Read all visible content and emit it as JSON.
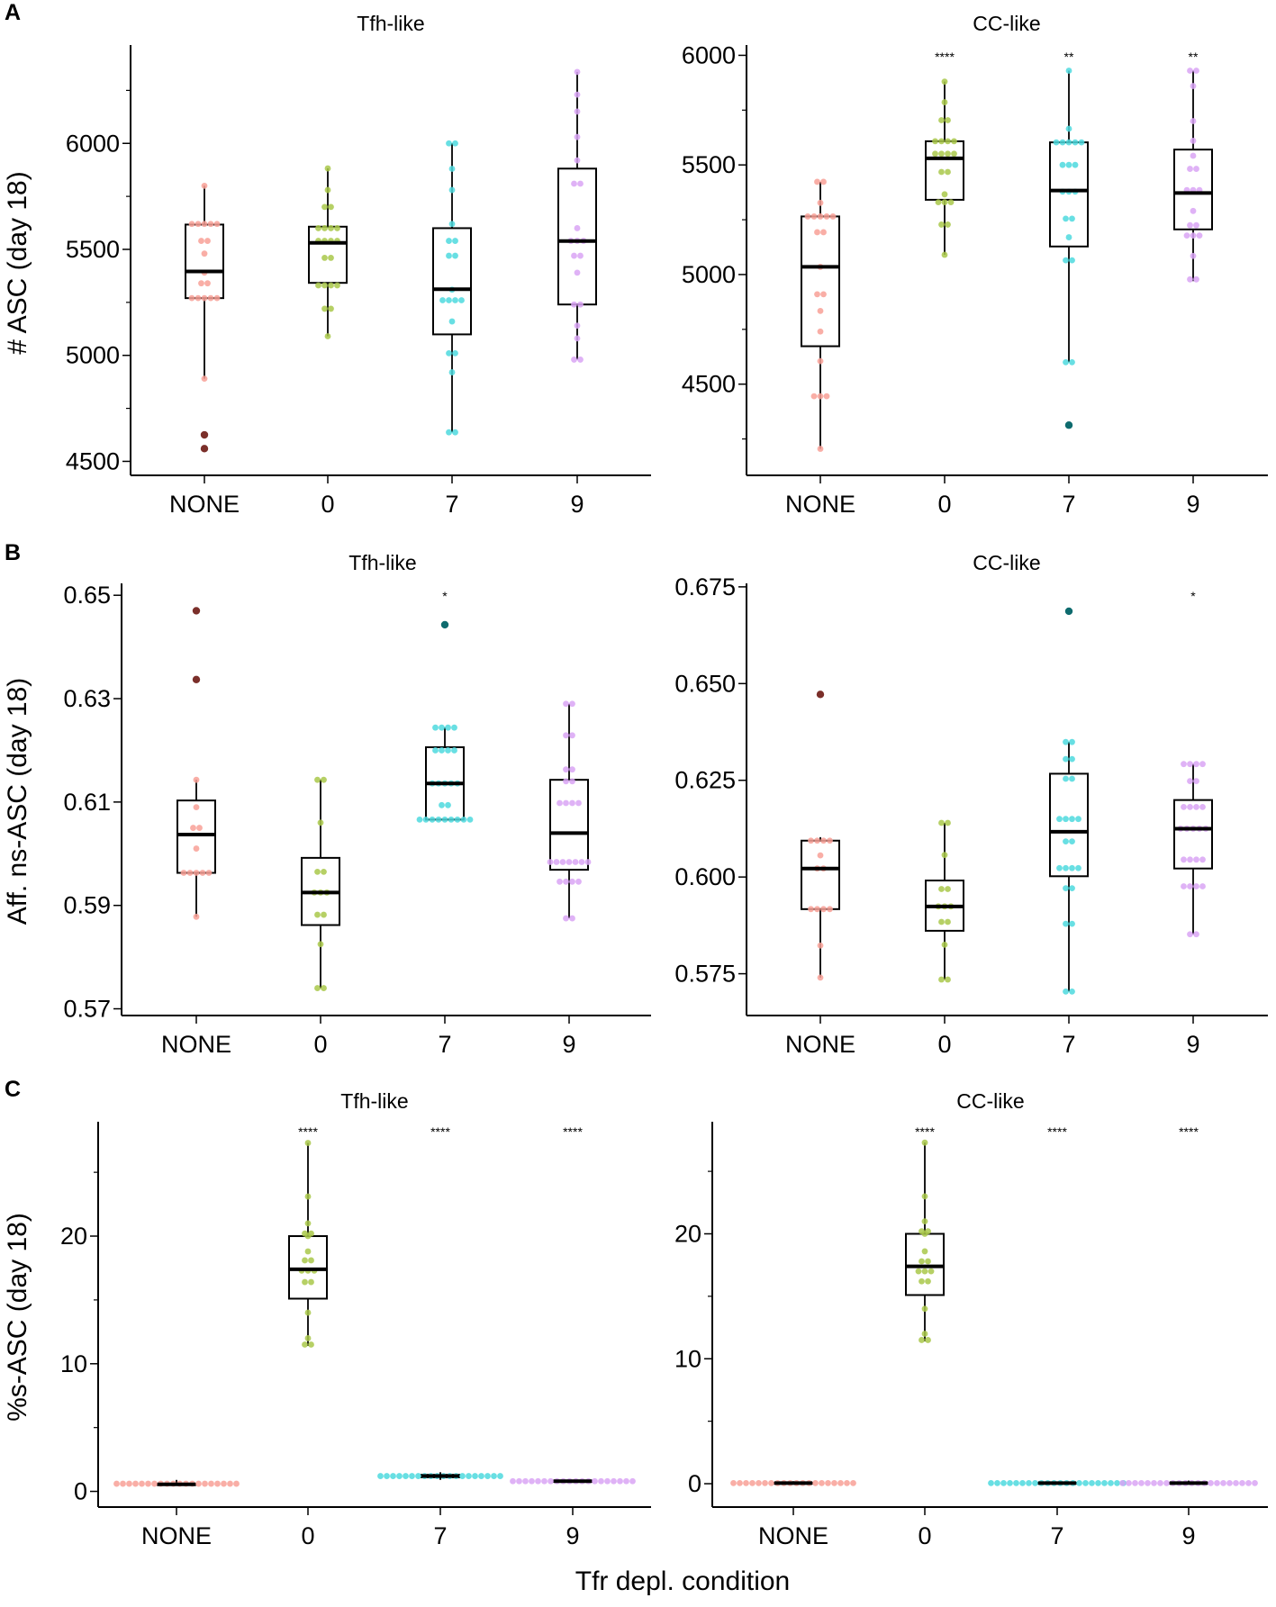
{
  "figure": {
    "panel_letters": [
      "A",
      "B",
      "C"
    ],
    "xlabel": "Tfr depl. condition",
    "colors": {
      "NONE": "#f8a097",
      "0": "#a9c84a",
      "7": "#4dd9de",
      "9": "#d9a4f5",
      "NONE_dark": "#7b2f2a",
      "0_dark": "#5d7d16",
      "7_dark": "#0e6b6e",
      "9_dark": "#7c3fa0"
    }
  },
  "chart_data": [
    {
      "type": "box",
      "panel": "A",
      "title": "Tfh-like",
      "ylabel": "# ASC (day 18)",
      "categories": [
        "NONE",
        "0",
        "7",
        "9"
      ],
      "ylim": [
        4434,
        6464
      ],
      "yticks": [
        4500,
        5000,
        5500,
        6000
      ],
      "ytick_labels": [
        "4500",
        "5000",
        "5500",
        "6000"
      ],
      "yminor": [
        4750,
        5250,
        5750,
        6250
      ],
      "groups": [
        {
          "name": "NONE",
          "box": {
            "whisker_low": 4890,
            "q1": 5270,
            "median": 5396,
            "q3": 5617,
            "whisker_high": 5800
          },
          "points": [
            5800,
            5620,
            5620,
            5620,
            5620,
            5620,
            5540,
            5540,
            5480,
            5390,
            5340,
            5340,
            5270,
            5270,
            5270,
            5270,
            5270,
            4890
          ],
          "outliers": [
            4625,
            4560
          ],
          "significance": ""
        },
        {
          "name": "0",
          "box": {
            "whisker_low": 5090,
            "q1": 5342,
            "median": 5531,
            "q3": 5607,
            "whisker_high": 5882
          },
          "points": [
            5882,
            5780,
            5700,
            5700,
            5600,
            5600,
            5600,
            5600,
            5540,
            5540,
            5540,
            5540,
            5460,
            5460,
            5330,
            5330,
            5330,
            5330,
            5220,
            5220,
            5090
          ],
          "outliers": [],
          "significance": ""
        },
        {
          "name": "7",
          "box": {
            "whisker_low": 4637,
            "q1": 5099,
            "median": 5312,
            "q3": 5600,
            "whisker_high": 6000
          },
          "points": [
            6000,
            6000,
            5880,
            5780,
            5620,
            5540,
            5540,
            5470,
            5470,
            5310,
            5260,
            5260,
            5260,
            5260,
            5160,
            5010,
            5010,
            4920,
            4637,
            4637
          ],
          "outliers": [],
          "significance": ""
        },
        {
          "name": "9",
          "box": {
            "whisker_low": 4980,
            "q1": 5240,
            "median": 5539,
            "q3": 5881,
            "whisker_high": 6337
          },
          "points": [
            6337,
            6230,
            6150,
            6030,
            5920,
            5810,
            5810,
            5600,
            5540,
            5540,
            5540,
            5470,
            5470,
            5390,
            5240,
            5240,
            5140,
            5080,
            4980,
            4980
          ],
          "outliers": [],
          "significance": ""
        }
      ]
    },
    {
      "type": "box",
      "panel": "A",
      "title": "CC-like",
      "ylabel": "",
      "categories": [
        "NONE",
        "0",
        "7",
        "9"
      ],
      "ylim": [
        4084,
        6047
      ],
      "yticks": [
        4500,
        5000,
        5500,
        6000
      ],
      "ytick_labels": [
        "4500",
        "5000",
        "5500",
        "6000"
      ],
      "yminor": [
        4250,
        4750,
        5250,
        5750
      ],
      "groups": [
        {
          "name": "NONE",
          "box": {
            "whisker_low": 4205,
            "q1": 4673,
            "median": 5035,
            "q3": 5265,
            "whisker_high": 5423
          },
          "points": [
            5423,
            5423,
            5327,
            5265,
            5265,
            5265,
            5265,
            5265,
            5193,
            5193,
            5035,
            4910,
            4910,
            4834,
            4740,
            4605,
            4445,
            4445,
            4445,
            4205
          ],
          "outliers": [],
          "significance": ""
        },
        {
          "name": "0",
          "box": {
            "whisker_low": 5090,
            "q1": 5341,
            "median": 5530,
            "q3": 5608,
            "whisker_high": 5880
          },
          "points": [
            5880,
            5786,
            5704,
            5704,
            5608,
            5608,
            5608,
            5608,
            5551,
            5551,
            5551,
            5551,
            5468,
            5468,
            5366,
            5330,
            5330,
            5330,
            5228,
            5228,
            5090
          ],
          "outliers": [],
          "significance": "****"
        },
        {
          "name": "7",
          "box": {
            "whisker_low": 4600,
            "q1": 5128,
            "median": 5383,
            "q3": 5603,
            "whisker_high": 5930
          },
          "points": [
            5930,
            5665,
            5603,
            5603,
            5603,
            5603,
            5603,
            5500,
            5500,
            5500,
            5378,
            5378,
            5378,
            5255,
            5255,
            5170,
            5065,
            5065,
            4600,
            4600
          ],
          "outliers": [
            4313
          ],
          "significance": "**"
        },
        {
          "name": "9",
          "box": {
            "whisker_low": 4970,
            "q1": 5206,
            "median": 5372,
            "q3": 5570,
            "whisker_high": 5930
          },
          "points": [
            5930,
            5930,
            5860,
            5700,
            5610,
            5542,
            5482,
            5482,
            5385,
            5385,
            5385,
            5290,
            5225,
            5225,
            5178,
            5178,
            5178,
            5085,
            4978,
            4978
          ],
          "outliers": [],
          "significance": "**"
        }
      ]
    },
    {
      "type": "box",
      "panel": "B",
      "title": "Tfh-like",
      "ylabel": "Aff. ns-ASC (day 18)",
      "categories": [
        "NONE",
        "0",
        "7",
        "9"
      ],
      "ylim": [
        0.5687,
        0.6523
      ],
      "yticks": [
        0.57,
        0.59,
        0.61,
        0.63,
        0.65
      ],
      "ytick_labels": [
        "0.57",
        "0.59",
        "0.61",
        "0.63",
        "0.65"
      ],
      "yminor": [],
      "groups": [
        {
          "name": "NONE",
          "box": {
            "whisker_low": 0.5878,
            "q1": 0.5963,
            "median": 0.6037,
            "q3": 0.6103,
            "whisker_high": 0.6143
          },
          "points": [
            0.6143,
            0.609,
            0.605,
            0.605,
            0.601,
            0.5963,
            0.5963,
            0.5963,
            0.5963,
            0.5963,
            0.5878
          ],
          "outliers": [
            0.647,
            0.6337
          ],
          "significance": ""
        },
        {
          "name": "0",
          "box": {
            "whisker_low": 0.574,
            "q1": 0.5862,
            "median": 0.5925,
            "q3": 0.5992,
            "whisker_high": 0.6143
          },
          "points": [
            0.6143,
            0.6143,
            0.606,
            0.5965,
            0.5965,
            0.5925,
            0.5925,
            0.5925,
            0.5882,
            0.5882,
            0.5825,
            0.574,
            0.574
          ],
          "outliers": [],
          "significance": ""
        },
        {
          "name": "7",
          "box": {
            "whisker_low": 0.6066,
            "q1": 0.6066,
            "median": 0.6136,
            "q3": 0.6206,
            "whisker_high": 0.6244
          },
          "points": [
            0.6244,
            0.6244,
            0.6244,
            0.6244,
            0.62,
            0.62,
            0.62,
            0.62,
            0.6136,
            0.6136,
            0.6136,
            0.6136,
            0.6136,
            0.6094,
            0.6094,
            0.6066,
            0.6066,
            0.6066,
            0.6066,
            0.6066,
            0.6066,
            0.6066,
            0.6066,
            0.6066
          ],
          "outliers": [
            0.6443
          ],
          "significance": "*"
        },
        {
          "name": "9",
          "box": {
            "whisker_low": 0.5875,
            "q1": 0.5969,
            "median": 0.604,
            "q3": 0.6143,
            "whisker_high": 0.629
          },
          "points": [
            0.629,
            0.629,
            0.6229,
            0.6229,
            0.6163,
            0.6163,
            0.614,
            0.614,
            0.6098,
            0.6098,
            0.6098,
            0.6098,
            0.5984,
            0.5984,
            0.5984,
            0.5984,
            0.5984,
            0.5984,
            0.5984,
            0.5946,
            0.5946,
            0.5946,
            0.5946,
            0.5875,
            0.5875
          ],
          "outliers": [],
          "significance": ""
        }
      ]
    },
    {
      "type": "box",
      "panel": "B",
      "title": "CC-like",
      "ylabel": "",
      "categories": [
        "NONE",
        "0",
        "7",
        "9"
      ],
      "ylim": [
        0.5642,
        0.6759
      ],
      "yticks": [
        0.575,
        0.6,
        0.625,
        0.65,
        0.675
      ],
      "ytick_labels": [
        "0.575",
        "0.600",
        "0.625",
        "0.650",
        "0.675"
      ],
      "yminor": [],
      "groups": [
        {
          "name": "NONE",
          "box": {
            "whisker_low": 0.574,
            "q1": 0.5917,
            "median": 0.6022,
            "q3": 0.6094,
            "whisker_high": 0.6103
          },
          "points": [
            0.6094,
            0.6094,
            0.6094,
            0.6094,
            0.6056,
            0.6022,
            0.6022,
            0.5917,
            0.5917,
            0.5917,
            0.5917,
            0.5823,
            0.574
          ],
          "outliers": [
            0.6472
          ],
          "significance": ""
        },
        {
          "name": "0",
          "box": {
            "whisker_low": 0.5735,
            "q1": 0.5861,
            "median": 0.5924,
            "q3": 0.5991,
            "whisker_high": 0.614
          },
          "points": [
            0.614,
            0.614,
            0.6057,
            0.5969,
            0.5969,
            0.5924,
            0.5924,
            0.5924,
            0.5884,
            0.5884,
            0.5825,
            0.5735,
            0.5735
          ],
          "outliers": [],
          "significance": ""
        },
        {
          "name": "7",
          "box": {
            "whisker_low": 0.5704,
            "q1": 0.6002,
            "median": 0.6117,
            "q3": 0.6267,
            "whisker_high": 0.6349
          },
          "points": [
            0.6349,
            0.6349,
            0.6305,
            0.6305,
            0.6254,
            0.6254,
            0.615,
            0.615,
            0.615,
            0.615,
            0.6092,
            0.6092,
            0.6023,
            0.6023,
            0.6023,
            0.6023,
            0.5971,
            0.5971,
            0.5879,
            0.5879,
            0.5704,
            0.5704
          ],
          "outliers": [
            0.6687
          ],
          "significance": ""
        },
        {
          "name": "9",
          "box": {
            "whisker_low": 0.5852,
            "q1": 0.6022,
            "median": 0.6125,
            "q3": 0.6199,
            "whisker_high": 0.6292
          },
          "points": [
            0.6292,
            0.6292,
            0.6292,
            0.6292,
            0.6248,
            0.6248,
            0.6181,
            0.6181,
            0.6181,
            0.6181,
            0.6125,
            0.6125,
            0.6125,
            0.6125,
            0.6125,
            0.6045,
            0.6045,
            0.6045,
            0.6045,
            0.5976,
            0.5976,
            0.5976,
            0.5976,
            0.5852,
            0.5852
          ],
          "outliers": [],
          "significance": "*"
        }
      ]
    },
    {
      "type": "box",
      "panel": "C",
      "title": "Tfh-like",
      "ylabel": "%s-ASC (day 18)",
      "categories": [
        "NONE",
        "0",
        "7",
        "9"
      ],
      "ylim": [
        -1.23,
        28.96
      ],
      "yticks": [
        0,
        10,
        20
      ],
      "ytick_labels": [
        "0",
        "10",
        "20"
      ],
      "yminor": [
        5,
        15,
        25
      ],
      "groups": [
        {
          "name": "NONE",
          "box": {
            "whisker_low": 0.45,
            "q1": 0.5,
            "median": 0.55,
            "q3": 0.6,
            "whisker_high": 0.9
          },
          "points": [
            0.6,
            0.6,
            0.6,
            0.6,
            0.6,
            0.6,
            0.6,
            0.6,
            0.6,
            0.6,
            0.6,
            0.6,
            0.6,
            0.6,
            0.6,
            0.6,
            0.6,
            0.6,
            0.6,
            0.6
          ],
          "outliers": [],
          "significance": ""
        },
        {
          "name": "0",
          "box": {
            "whisker_low": 11.4,
            "q1": 15.1,
            "median": 17.4,
            "q3": 20.0,
            "whisker_high": 27.3
          },
          "points": [
            27.3,
            23.1,
            21.0,
            20.2,
            20.2,
            20.0,
            18.8,
            18.1,
            18.1,
            17.3,
            17.3,
            17.3,
            16.4,
            16.4,
            14.0,
            12.0,
            11.5,
            11.5
          ],
          "outliers": [],
          "significance": "****"
        },
        {
          "name": "7",
          "box": {
            "whisker_low": 0.9,
            "q1": 1.1,
            "median": 1.2,
            "q3": 1.3,
            "whisker_high": 1.5
          },
          "points": [
            1.2,
            1.2,
            1.2,
            1.2,
            1.2,
            1.2,
            1.2,
            1.2,
            1.2,
            1.2,
            1.2,
            1.2,
            1.2,
            1.2,
            1.2,
            1.2,
            1.2,
            1.2,
            1.2,
            1.2
          ],
          "outliers": [],
          "significance": "****"
        },
        {
          "name": "9",
          "box": {
            "whisker_low": 0.7,
            "q1": 0.75,
            "median": 0.8,
            "q3": 0.85,
            "whisker_high": 0.9
          },
          "points": [
            0.8,
            0.8,
            0.8,
            0.8,
            0.8,
            0.8,
            0.8,
            0.8,
            0.8,
            0.8,
            0.8,
            0.8,
            0.8,
            0.8,
            0.8,
            0.8,
            0.8,
            0.8,
            0.8,
            0.8
          ],
          "outliers": [],
          "significance": "****"
        }
      ]
    },
    {
      "type": "box",
      "panel": "C",
      "title": "CC-like",
      "ylabel": "",
      "categories": [
        "NONE",
        "0",
        "7",
        "9"
      ],
      "ylim": [
        -1.87,
        28.97
      ],
      "yticks": [
        0,
        10,
        20
      ],
      "ytick_labels": [
        "0",
        "10",
        "20"
      ],
      "yminor": [
        5,
        15,
        25
      ],
      "groups": [
        {
          "name": "NONE",
          "box": {
            "whisker_low": 0.0,
            "q1": 0.02,
            "median": 0.05,
            "q3": 0.08,
            "whisker_high": 0.2
          },
          "points": [
            0.05,
            0.05,
            0.05,
            0.05,
            0.05,
            0.05,
            0.05,
            0.05,
            0.05,
            0.05,
            0.05,
            0.05,
            0.05,
            0.05,
            0.05,
            0.05,
            0.05,
            0.05,
            0.05,
            0.05
          ],
          "outliers": [],
          "significance": ""
        },
        {
          "name": "0",
          "box": {
            "whisker_low": 11.4,
            "q1": 15.1,
            "median": 17.4,
            "q3": 20.0,
            "whisker_high": 27.3
          },
          "points": [
            27.3,
            23.0,
            21.0,
            20.2,
            20.2,
            20.0,
            18.6,
            17.8,
            17.8,
            17.0,
            17.0,
            17.0,
            16.2,
            16.2,
            14.0,
            12.0,
            11.5,
            11.5
          ],
          "outliers": [],
          "significance": "****"
        },
        {
          "name": "7",
          "box": {
            "whisker_low": 0.0,
            "q1": 0.02,
            "median": 0.05,
            "q3": 0.08,
            "whisker_high": 0.1
          },
          "points": [
            0.05,
            0.05,
            0.05,
            0.05,
            0.05,
            0.05,
            0.05,
            0.05,
            0.05,
            0.05,
            0.05,
            0.05,
            0.05,
            0.05,
            0.05,
            0.05,
            0.05,
            0.05,
            0.05,
            0.05,
            0.05,
            0.05
          ],
          "outliers": [],
          "significance": "****"
        },
        {
          "name": "9",
          "box": {
            "whisker_low": 0.0,
            "q1": 0.02,
            "median": 0.05,
            "q3": 0.08,
            "whisker_high": 0.25
          },
          "points": [
            0.05,
            0.05,
            0.05,
            0.05,
            0.05,
            0.05,
            0.05,
            0.05,
            0.05,
            0.05,
            0.05,
            0.05,
            0.05,
            0.05,
            0.05,
            0.05,
            0.05,
            0.05,
            0.05,
            0.05,
            0.05,
            0.05
          ],
          "outliers": [],
          "significance": "****"
        }
      ]
    }
  ]
}
